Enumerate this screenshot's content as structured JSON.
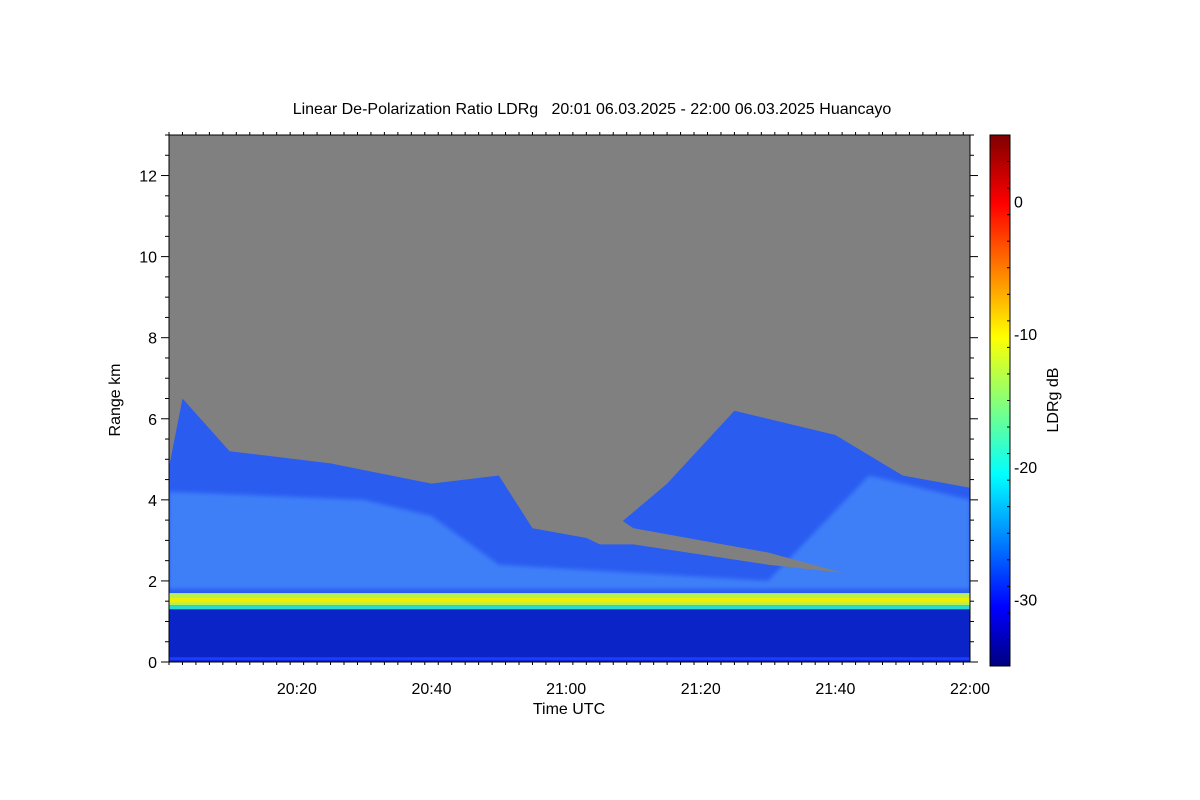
{
  "chart_data": {
    "type": "heatmap",
    "title": "Linear De-Polarization Ratio LDRg   20:01 06.03.2025 - 22:00 06.03.2025 Huancayo",
    "xlabel": "Time UTC",
    "ylabel": "Range km",
    "colorbar_label": "LDRg dB",
    "x_range_minutes_utc": [
      "20:01",
      "22:00"
    ],
    "x_ticks": [
      "20:20",
      "20:40",
      "21:00",
      "21:20",
      "21:40",
      "22:00"
    ],
    "ylim": [
      0,
      13
    ],
    "y_ticks": [
      0,
      2,
      4,
      6,
      8,
      10,
      12
    ],
    "colorbar_range": [
      -35,
      5
    ],
    "colorbar_ticks": [
      0,
      -10,
      -20,
      -30
    ],
    "colormap": "jet",
    "no_data_color": "#808080",
    "features": {
      "near_surface_layer_km": [
        0.0,
        1.4
      ],
      "near_surface_ldr_db": -33,
      "bright_band_km": [
        1.4,
        1.7
      ],
      "bright_band_ldr_db": -13,
      "cloud_ldr_db": -27,
      "cloud_top_profile": [
        {
          "time": "20:01",
          "top_km": 4.8
        },
        {
          "time": "20:03",
          "top_km": 6.5
        },
        {
          "time": "20:10",
          "top_km": 5.2
        },
        {
          "time": "20:25",
          "top_km": 4.9
        },
        {
          "time": "20:40",
          "top_km": 4.4
        },
        {
          "time": "20:50",
          "top_km": 4.6
        },
        {
          "time": "20:55",
          "top_km": 3.3
        },
        {
          "time": "21:05",
          "top_km": 3.0
        },
        {
          "time": "21:15",
          "top_km": 4.4
        },
        {
          "time": "21:25",
          "top_km": 6.2
        },
        {
          "time": "21:40",
          "top_km": 5.6
        },
        {
          "time": "21:50",
          "top_km": 4.6
        },
        {
          "time": "22:00",
          "top_km": 4.3
        }
      ]
    }
  }
}
